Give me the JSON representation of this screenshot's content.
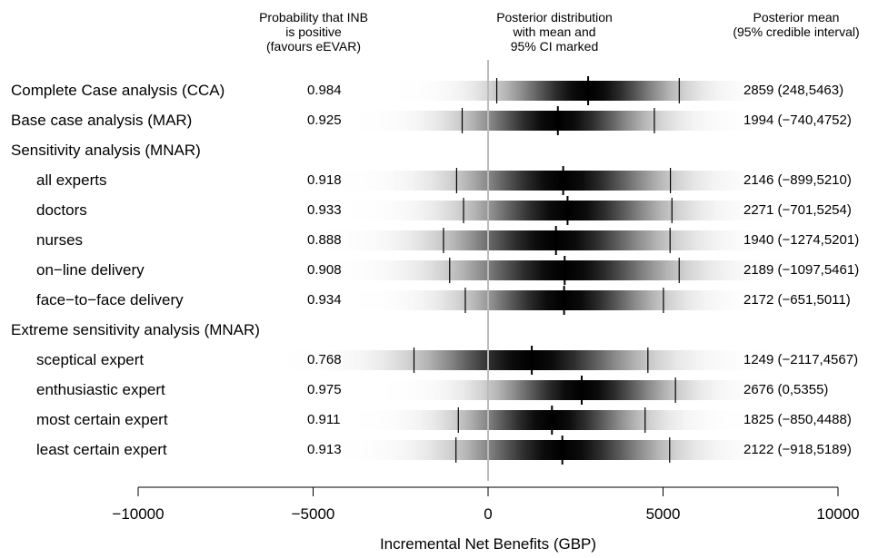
{
  "chart_data": {
    "type": "forest",
    "headers": {
      "probability": [
        "Probability that INB",
        "is positive",
        "(favours eEVAR)"
      ],
      "distribution": [
        "Posterior distribution",
        "with mean and",
        "95% CI marked"
      ],
      "mean": [
        "Posterior mean",
        "(95% credible interval)"
      ]
    },
    "xlabel": "Incremental Net Benefits (GBP)",
    "xlim": [
      -10000,
      10000
    ],
    "xticks": [
      {
        "value": -10000,
        "label": "−10000"
      },
      {
        "value": -5000,
        "label": "−5000"
      },
      {
        "value": 0,
        "label": "0"
      },
      {
        "value": 5000,
        "label": "5000"
      },
      {
        "value": 10000,
        "label": "10000"
      }
    ],
    "reference_line": 0,
    "rows": [
      {
        "label": "Complete Case analysis (CCA)",
        "indent": false,
        "prob": "0.984",
        "mean": 2859,
        "lo": 248,
        "hi": 5463,
        "summary": "2859 (248,5463)"
      },
      {
        "label": "Base case analysis (MAR)",
        "indent": false,
        "prob": "0.925",
        "mean": 1994,
        "lo": -740,
        "hi": 4752,
        "summary": "1994 (−740,4752)"
      },
      {
        "label": "Sensitivity analysis (MNAR)",
        "indent": false,
        "heading": true
      },
      {
        "label": "all experts",
        "indent": true,
        "prob": "0.918",
        "mean": 2146,
        "lo": -899,
        "hi": 5210,
        "summary": "2146 (−899,5210)"
      },
      {
        "label": "doctors",
        "indent": true,
        "prob": "0.933",
        "mean": 2271,
        "lo": -701,
        "hi": 5254,
        "summary": "2271 (−701,5254)"
      },
      {
        "label": "nurses",
        "indent": true,
        "prob": "0.888",
        "mean": 1940,
        "lo": -1274,
        "hi": 5201,
        "summary": "1940 (−1274,5201)"
      },
      {
        "label": "on−line delivery",
        "indent": true,
        "prob": "0.908",
        "mean": 2189,
        "lo": -1097,
        "hi": 5461,
        "summary": "2189 (−1097,5461)"
      },
      {
        "label": "face−to−face delivery",
        "indent": true,
        "prob": "0.934",
        "mean": 2172,
        "lo": -651,
        "hi": 5011,
        "summary": "2172 (−651,5011)"
      },
      {
        "label": "Extreme sensitivity analysis (MNAR)",
        "indent": false,
        "heading": true
      },
      {
        "label": "sceptical expert",
        "indent": true,
        "prob": "0.768",
        "mean": 1249,
        "lo": -2117,
        "hi": 4567,
        "summary": "1249 (−2117,4567)"
      },
      {
        "label": "enthusiastic expert",
        "indent": true,
        "prob": "0.975",
        "mean": 2676,
        "lo": 0,
        "hi": 5355,
        "summary": "2676 (0,5355)"
      },
      {
        "label": "most certain expert",
        "indent": true,
        "prob": "0.911",
        "mean": 1825,
        "lo": -850,
        "hi": 4488,
        "summary": "1825 (−850,4488)"
      },
      {
        "label": "least certain expert",
        "indent": true,
        "prob": "0.913",
        "mean": 2122,
        "lo": -918,
        "hi": 5189,
        "summary": "2122 (−918,5189)"
      }
    ]
  }
}
